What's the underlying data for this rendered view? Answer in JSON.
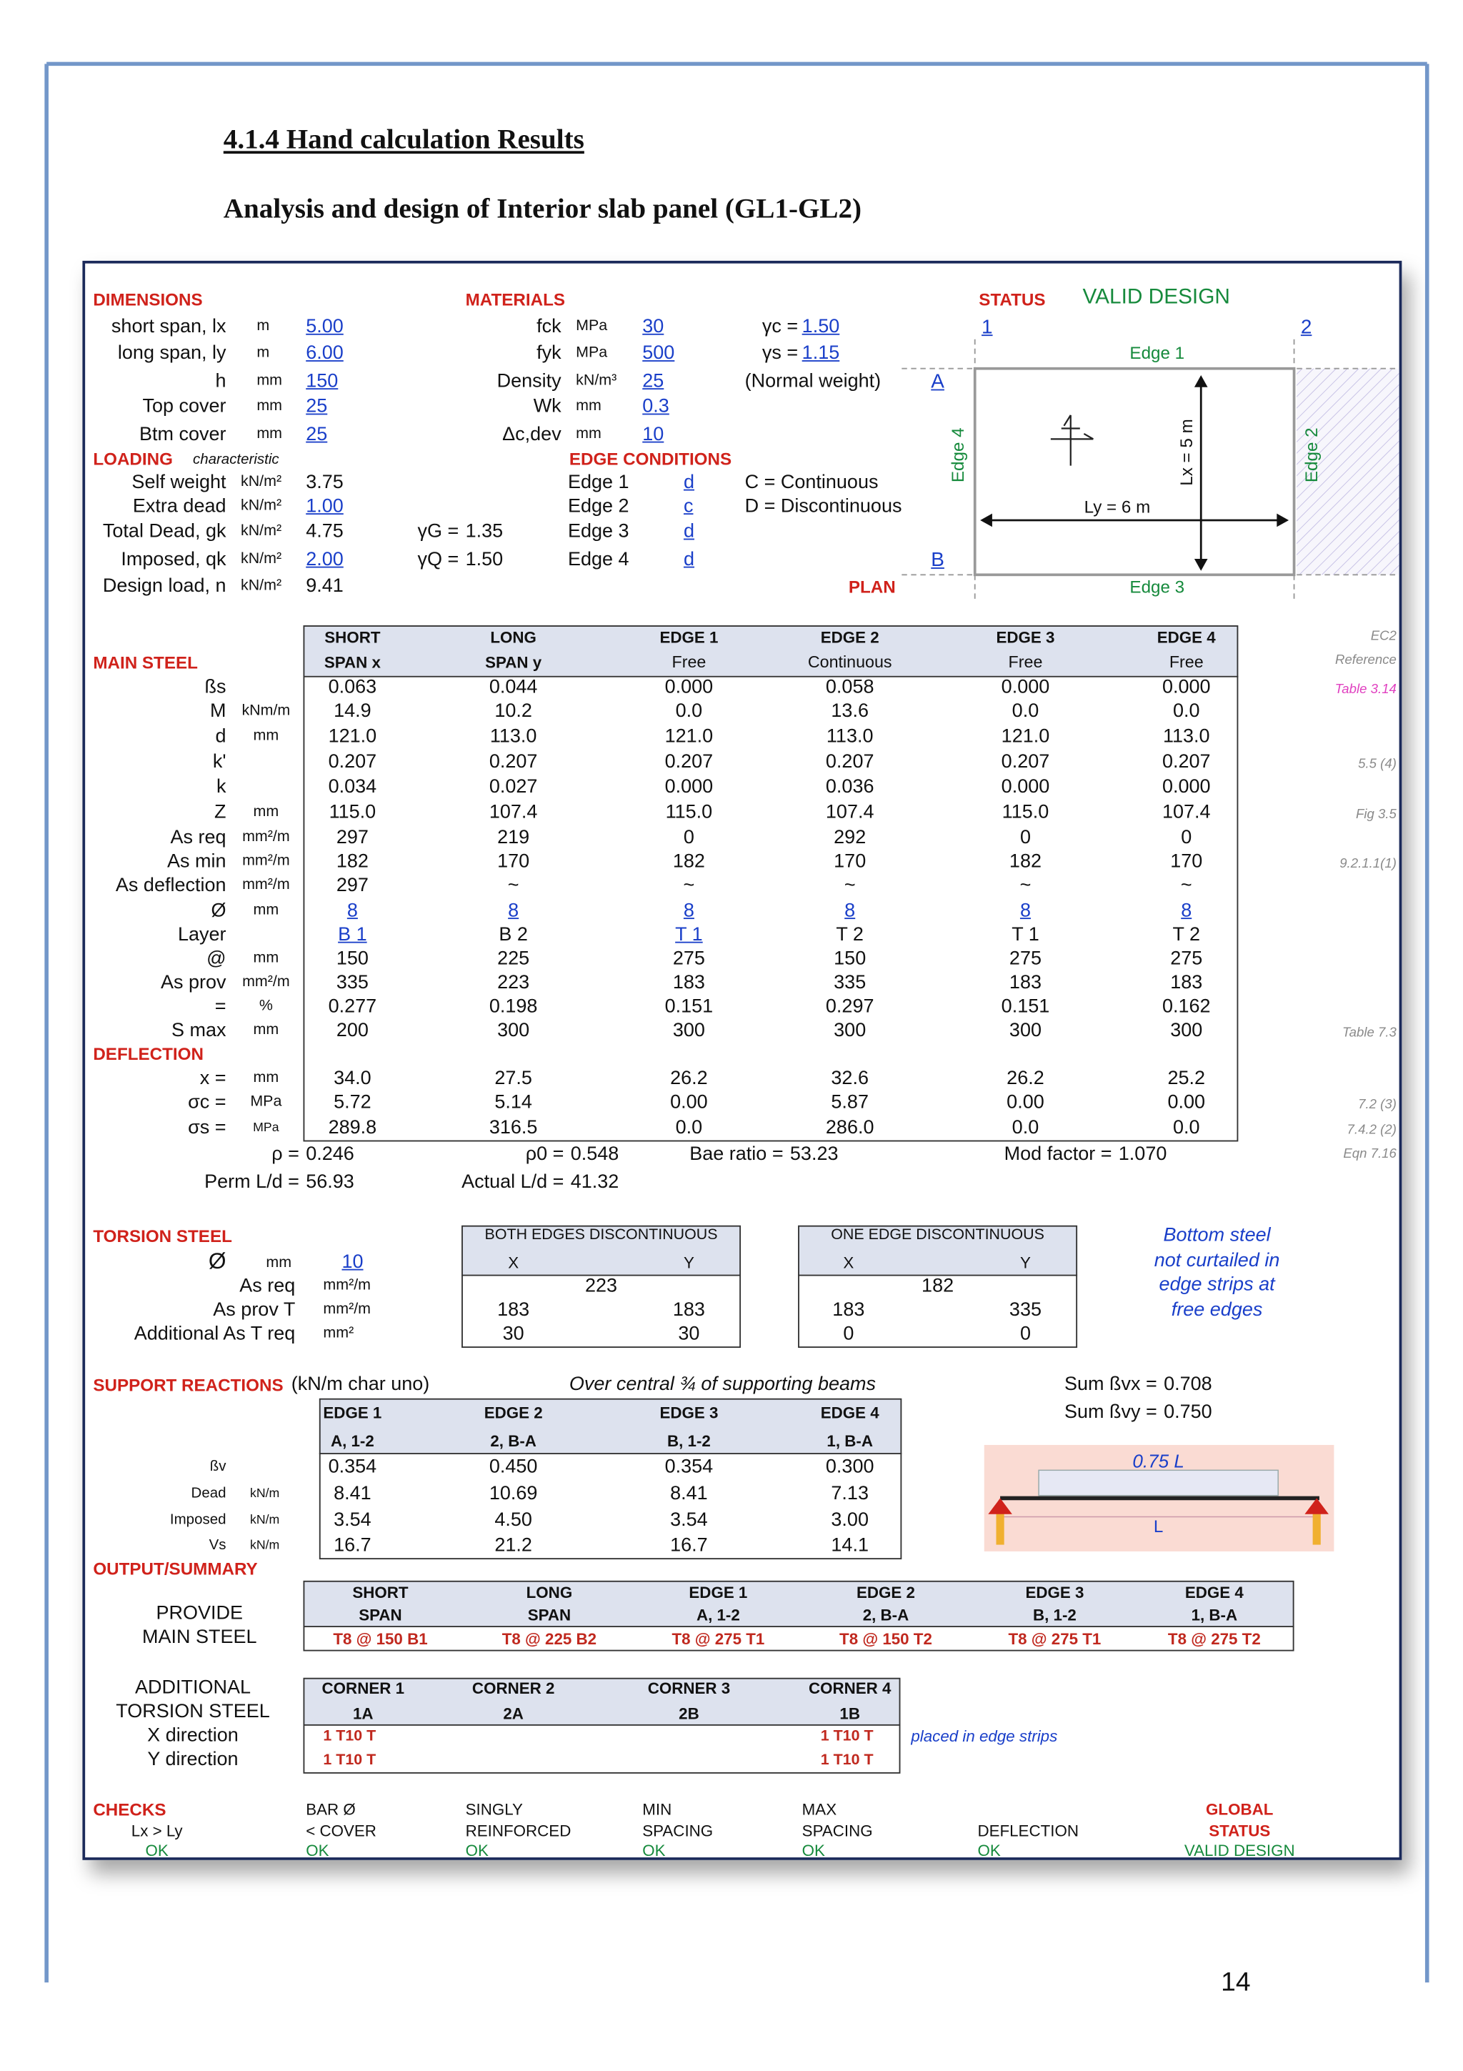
{
  "header": {
    "section": "4.1.4 Hand calculation Results",
    "subtitle": "Analysis and design of Interior slab panel (GL1-GL2)"
  },
  "dimensions": {
    "heading": "DIMENSIONS",
    "rows": [
      {
        "label": "short span, lx",
        "unit": "m",
        "value": "5.00"
      },
      {
        "label": "long span, ly",
        "unit": "m",
        "value": "6.00"
      },
      {
        "label": "h",
        "unit": "mm",
        "value": "150"
      },
      {
        "label": "Top cover",
        "unit": "mm",
        "value": "25"
      },
      {
        "label": "Btm cover",
        "unit": "mm",
        "value": "25"
      }
    ]
  },
  "materials": {
    "heading": "MATERIALS",
    "rows": [
      {
        "label": "fck",
        "unit": "MPa",
        "value": "30"
      },
      {
        "label": "fyk",
        "unit": "MPa",
        "value": "500"
      },
      {
        "label": "Density",
        "unit": "kN/m³",
        "value": "25"
      },
      {
        "label": "Wk",
        "unit": "mm",
        "value": "0.3"
      },
      {
        "label": "Δc,dev",
        "unit": "mm",
        "value": "10"
      }
    ],
    "factors": [
      {
        "label": "γc =",
        "value": "1.50"
      },
      {
        "label": "γs =",
        "value": "1.15"
      }
    ],
    "note": "(Normal weight)"
  },
  "loading": {
    "heading": "LOADING",
    "subheading": "characteristic",
    "rows": [
      {
        "label": "Self weight",
        "unit": "kN/m²",
        "value": "3.75"
      },
      {
        "label": "Extra dead",
        "unit": "kN/m²",
        "value": "1.00"
      },
      {
        "label": "Total Dead, gk",
        "unit": "kN/m²",
        "value": "4.75"
      },
      {
        "label": "Imposed, qk",
        "unit": "kN/m²",
        "value": "2.00"
      },
      {
        "label": "Design load, n",
        "unit": "kN/m²",
        "value": "9.41"
      }
    ],
    "factors": [
      {
        "label": "γG =",
        "value": "1.35"
      },
      {
        "label": "γQ =",
        "value": "1.50"
      }
    ]
  },
  "edge_conditions": {
    "heading": "EDGE CONDITIONS",
    "rows": [
      {
        "label": "Edge 1",
        "value": "d"
      },
      {
        "label": "Edge 2",
        "value": "c"
      },
      {
        "label": "Edge 3",
        "value": "d"
      },
      {
        "label": "Edge 4",
        "value": "d"
      }
    ],
    "legend": [
      "C = Continuous",
      "D = Discontinuous"
    ]
  },
  "status": {
    "heading": "STATUS",
    "value": "VALID DESIGN",
    "links": [
      "1",
      "2"
    ],
    "corners": [
      "A",
      "B"
    ],
    "plan": "PLAN",
    "edges": [
      "Edge 1",
      "Edge 2",
      "Edge 3",
      "Edge 4"
    ],
    "lx": "Lx = 5 m",
    "ly": "Ly = 6 m"
  },
  "main_steel": {
    "heading": "MAIN STEEL",
    "reference": [
      "EC2",
      "Reference"
    ],
    "columns": [
      [
        "SHORT",
        "SPAN x"
      ],
      [
        "LONG",
        "SPAN y"
      ],
      [
        "EDGE 1",
        "Free"
      ],
      [
        "EDGE 2",
        "Continuous"
      ],
      [
        "EDGE 3",
        "Free"
      ],
      [
        "EDGE 4",
        "Free"
      ]
    ],
    "rows": [
      {
        "label": "ßs",
        "values": [
          "0.063",
          "0.044",
          "0.000",
          "0.058",
          "0.000",
          "0.000"
        ],
        "ref": "Table 3.14"
      },
      {
        "label": "M",
        "unit": "kNm/m",
        "values": [
          "14.9",
          "10.2",
          "0.0",
          "13.6",
          "0.0",
          "0.0"
        ]
      },
      {
        "label": "d",
        "unit": "mm",
        "values": [
          "121.0",
          "113.0",
          "121.0",
          "113.0",
          "121.0",
          "113.0"
        ]
      },
      {
        "label": "k'",
        "values": [
          "0.207",
          "0.207",
          "0.207",
          "0.207",
          "0.207",
          "0.207"
        ],
        "ref": "5.5 (4)"
      },
      {
        "label": "k",
        "values": [
          "0.034",
          "0.027",
          "0.000",
          "0.036",
          "0.000",
          "0.000"
        ]
      },
      {
        "label": "Z",
        "unit": "mm",
        "values": [
          "115.0",
          "107.4",
          "115.0",
          "107.4",
          "115.0",
          "107.4"
        ],
        "ref": "Fig 3.5"
      },
      {
        "label": "As req",
        "unit": "mm²/m",
        "values": [
          "297",
          "219",
          "0",
          "292",
          "0",
          "0"
        ]
      },
      {
        "label": "As min",
        "unit": "mm²/m",
        "values": [
          "182",
          "170",
          "182",
          "170",
          "182",
          "170"
        ],
        "ref": "9.2.1.1(1)"
      },
      {
        "label": "As deflection",
        "unit": "mm²/m",
        "values": [
          "297",
          "~",
          "~",
          "~",
          "~",
          "~"
        ]
      },
      {
        "label": "Ø",
        "unit": "mm",
        "values": [
          "8",
          "8",
          "8",
          "8",
          "8",
          "8"
        ]
      },
      {
        "label": "Layer",
        "values": [
          "B 1",
          "B 2",
          "T 1",
          "T 2",
          "T 1",
          "T 2"
        ]
      },
      {
        "label": "@",
        "unit": "mm",
        "values": [
          "150",
          "225",
          "275",
          "150",
          "275",
          "275"
        ]
      },
      {
        "label": "As prov",
        "unit": "mm²/m",
        "values": [
          "335",
          "223",
          "183",
          "335",
          "183",
          "183"
        ]
      },
      {
        "label": "=",
        "unit": "%",
        "values": [
          "0.277",
          "0.198",
          "0.151",
          "0.297",
          "0.151",
          "0.162"
        ]
      },
      {
        "label": "S max",
        "unit": "mm",
        "values": [
          "200",
          "300",
          "300",
          "300",
          "300",
          "300"
        ],
        "ref": "Table 7.3"
      }
    ],
    "deflection_heading": "DEFLECTION",
    "deflection_rows": [
      {
        "label": "x =",
        "unit": "mm",
        "values": [
          "34.0",
          "27.5",
          "26.2",
          "32.6",
          "26.2",
          "25.2"
        ]
      },
      {
        "label": "σc =",
        "unit": "MPa",
        "values": [
          "5.72",
          "5.14",
          "0.00",
          "5.87",
          "0.00",
          "0.00"
        ],
        "ref": "7.2 (3)"
      },
      {
        "label": "σs =",
        "unit": "MPa",
        "values": [
          "289.8",
          "316.5",
          "0.0",
          "286.0",
          "0.0",
          "0.0"
        ],
        "ref": "7.4.2 (2)"
      }
    ],
    "summary": [
      {
        "label": "ρ =",
        "value": "0.246"
      },
      {
        "label": "ρ0 =",
        "value": "0.548"
      },
      {
        "label": "Bae ratio =",
        "value": "53.23"
      },
      {
        "label": "Mod factor =",
        "value": "1.070"
      }
    ],
    "summary_ref": "Eqn 7.16",
    "ld": [
      {
        "label": "Perm L/d =",
        "value": "56.93"
      },
      {
        "label": "Actual L/d =",
        "value": "41.32"
      }
    ]
  },
  "torsion": {
    "heading": "TORSION STEEL",
    "bar": {
      "label": "Ø",
      "unit": "mm",
      "value": "10"
    },
    "rows": [
      {
        "label": "As req",
        "unit": "mm²/m"
      },
      {
        "label": "As prov T",
        "unit": "mm²/m"
      },
      {
        "label": "Additional As T req",
        "unit": "mm²"
      }
    ],
    "tables": [
      {
        "title": "BOTH EDGES DISCONTINUOUS",
        "cols": [
          "X",
          "Y"
        ],
        "as_req": "223",
        "prov": [
          "183",
          "183"
        ],
        "add": [
          "30",
          "30"
        ]
      },
      {
        "title": "ONE EDGE DISCONTINUOUS",
        "cols": [
          "X",
          "Y"
        ],
        "as_req": "182",
        "prov": [
          "183",
          "335"
        ],
        "add": [
          "0",
          "0"
        ]
      }
    ],
    "note": [
      "Bottom steel",
      "not curtailed in",
      "edge strips at",
      "free edges"
    ]
  },
  "support": {
    "heading": "SUPPORT REACTIONS",
    "unit_note": "(kN/m char uno)",
    "note": "Over central ¾ of supporting beams",
    "columns": [
      [
        "EDGE 1",
        "A, 1-2"
      ],
      [
        "EDGE 2",
        "2, B-A"
      ],
      [
        "EDGE 3",
        "B, 1-2"
      ],
      [
        "EDGE 4",
        "1, B-A"
      ]
    ],
    "rows": [
      {
        "label": "ßv",
        "values": [
          "0.354",
          "0.450",
          "0.354",
          "0.300"
        ]
      },
      {
        "label": "Dead",
        "unit": "kN/m",
        "values": [
          "8.41",
          "10.69",
          "8.41",
          "7.13"
        ]
      },
      {
        "label": "Imposed",
        "unit": "kN/m",
        "values": [
          "3.54",
          "4.50",
          "3.54",
          "3.00"
        ]
      },
      {
        "label": "Vs",
        "unit": "kN/m",
        "values": [
          "16.7",
          "21.2",
          "16.7",
          "14.1"
        ]
      }
    ],
    "sums": [
      {
        "label": "Sum ßvx =",
        "value": "0.708"
      },
      {
        "label": "Sum ßvy =",
        "value": "0.750"
      }
    ],
    "diagram": [
      "0.75 L",
      "L"
    ]
  },
  "output": {
    "heading": "OUTPUT/SUMMARY",
    "main": {
      "label": [
        "PROVIDE",
        "MAIN STEEL"
      ],
      "columns": [
        [
          "SHORT",
          "SPAN"
        ],
        [
          "LONG",
          "SPAN"
        ],
        [
          "EDGE 1",
          "A, 1-2"
        ],
        [
          "EDGE 2",
          "2, B-A"
        ],
        [
          "EDGE 3",
          "B, 1-2"
        ],
        [
          "EDGE 4",
          "1, B-A"
        ]
      ],
      "values": [
        "T8 @ 150 B1",
        "T8 @ 225 B2",
        "T8 @ 275 T1",
        "T8 @ 150 T2",
        "T8 @ 275 T1",
        "T8 @ 275 T2"
      ]
    },
    "torsion": {
      "label": [
        "ADDITIONAL",
        "TORSION STEEL"
      ],
      "columns": [
        [
          "CORNER 1",
          "1A"
        ],
        [
          "CORNER 2",
          "2A"
        ],
        [
          "CORNER 3",
          "2B"
        ],
        [
          "CORNER 4",
          "1B"
        ]
      ],
      "rows": [
        {
          "label": "X direction",
          "corner1": "1 T10 T",
          "corner4": "1 T10 T"
        },
        {
          "label": "Y direction",
          "corner1": "1 T10 T",
          "corner4": "1 T10 T"
        }
      ],
      "note": "placed in edge strips"
    }
  },
  "checks": {
    "heading": "CHECKS",
    "items": [
      {
        "label": [
          "Lx > Ly"
        ],
        "status": "OK"
      },
      {
        "label": [
          "BAR Ø",
          "< COVER"
        ],
        "status": "OK"
      },
      {
        "label": [
          "SINGLY",
          "REINFORCED"
        ],
        "status": "OK"
      },
      {
        "label": [
          "MIN",
          "SPACING"
        ],
        "status": "OK"
      },
      {
        "label": [
          "MAX",
          "SPACING"
        ],
        "status": "OK"
      },
      {
        "label": [
          "DEFLECTION"
        ],
        "status": "OK"
      }
    ],
    "global": {
      "label": [
        "GLOBAL",
        "STATUS"
      ],
      "value": "VALID DESIGN"
    }
  },
  "page_number": "14"
}
